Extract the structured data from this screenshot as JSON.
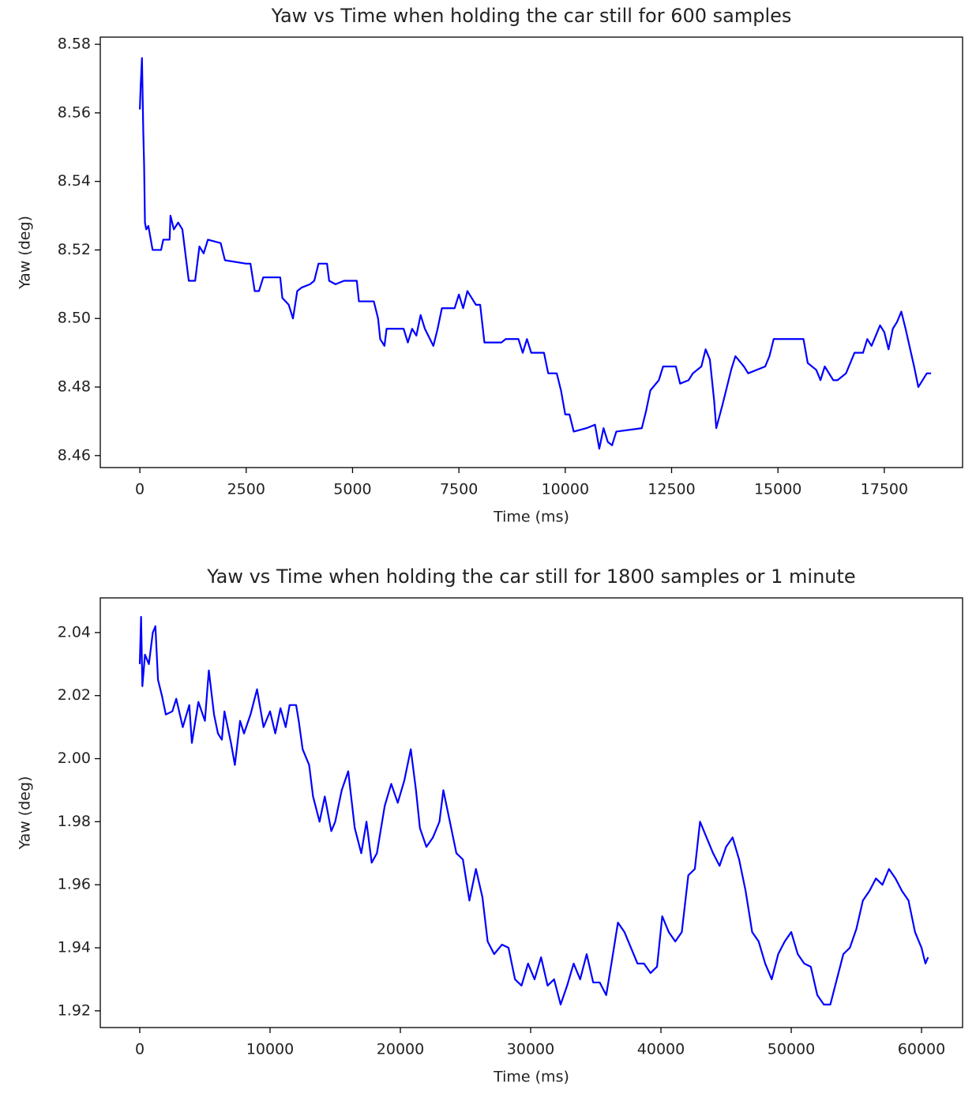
{
  "chart_data": [
    {
      "type": "line",
      "title": "Yaw vs Time when holding the car still for 600 samples",
      "x_label": "Time (ms)",
      "y_label": "Yaw (deg)",
      "x": [
        0,
        20,
        50,
        80,
        100,
        120,
        150,
        200,
        300,
        500,
        550,
        700,
        720,
        800,
        900,
        1000,
        1050,
        1150,
        1300,
        1400,
        1500,
        1600,
        1900,
        2000,
        2500,
        2600,
        2700,
        2800,
        2900,
        3300,
        3350,
        3500,
        3600,
        3700,
        3800,
        4000,
        4100,
        4200,
        4400,
        4450,
        4600,
        4800,
        5100,
        5150,
        5500,
        5600,
        5650,
        5750,
        5800,
        6200,
        6300,
        6400,
        6500,
        6600,
        6700,
        6900,
        7000,
        7100,
        7400,
        7500,
        7600,
        7700,
        7900,
        8000,
        8100,
        8500,
        8600,
        8900,
        9000,
        9100,
        9200,
        9500,
        9600,
        9800,
        9900,
        10000,
        10100,
        10200,
        10500,
        10700,
        10800,
        10900,
        11000,
        11100,
        11200,
        11800,
        11900,
        12000,
        12200,
        12300,
        12600,
        12700,
        12900,
        13000,
        13200,
        13300,
        13400,
        13500,
        13550,
        13700,
        13800,
        13900,
        14000,
        14200,
        14300,
        14700,
        14800,
        14900,
        15300,
        15600,
        15700,
        15900,
        16000,
        16100,
        16300,
        16400,
        16600,
        16800,
        17000,
        17100,
        17200,
        17300,
        17400,
        17500,
        17600,
        17700,
        17800,
        17900,
        18000,
        18200,
        18300,
        18400,
        18500,
        18600
      ],
      "series": [
        {
          "color": "#0000ff",
          "values": [
            8.561,
            8.568,
            8.576,
            8.555,
            8.545,
            8.528,
            8.526,
            8.527,
            8.52,
            8.52,
            8.523,
            8.523,
            8.53,
            8.526,
            8.528,
            8.526,
            8.521,
            8.511,
            8.511,
            8.521,
            8.519,
            8.523,
            8.522,
            8.517,
            8.516,
            8.516,
            8.508,
            8.508,
            8.512,
            8.512,
            8.506,
            8.504,
            8.5,
            8.508,
            8.509,
            8.51,
            8.511,
            8.516,
            8.516,
            8.511,
            8.51,
            8.511,
            8.511,
            8.505,
            8.505,
            8.5,
            8.494,
            8.492,
            8.497,
            8.497,
            8.493,
            8.497,
            8.495,
            8.501,
            8.497,
            8.492,
            8.497,
            8.503,
            8.503,
            8.507,
            8.503,
            8.508,
            8.504,
            8.504,
            8.493,
            8.493,
            8.494,
            8.494,
            8.49,
            8.494,
            8.49,
            8.49,
            8.484,
            8.484,
            8.479,
            8.472,
            8.472,
            8.467,
            8.468,
            8.469,
            8.462,
            8.468,
            8.464,
            8.463,
            8.467,
            8.468,
            8.473,
            8.479,
            8.482,
            8.486,
            8.486,
            8.481,
            8.482,
            8.484,
            8.486,
            8.491,
            8.488,
            8.476,
            8.468,
            8.475,
            8.48,
            8.485,
            8.489,
            8.486,
            8.484,
            8.486,
            8.489,
            8.494,
            8.494,
            8.494,
            8.487,
            8.485,
            8.482,
            8.486,
            8.482,
            8.482,
            8.484,
            8.49,
            8.49,
            8.494,
            8.492,
            8.495,
            8.498,
            8.496,
            8.491,
            8.497,
            8.499,
            8.502,
            8.497,
            8.486,
            8.48,
            8.482,
            8.484,
            8.484
          ]
        }
      ],
      "xlim": [
        -930,
        19340
      ],
      "xticks": [
        0,
        2500,
        5000,
        7500,
        10000,
        12500,
        15000,
        17500
      ],
      "ylim": [
        8.4565,
        8.5821
      ],
      "yticks": [
        8.46,
        8.48,
        {
          "value": 8.5,
          "label": "8.50"
        },
        8.52,
        8.54,
        8.56,
        8.58
      ]
    },
    {
      "type": "line",
      "title": "Yaw vs Time when holding the car still for 1800 samples or 1 minute",
      "x_label": "Time (ms)",
      "y_label": "Yaw (deg)",
      "x": [
        0,
        100,
        200,
        400,
        700,
        1000,
        1200,
        1400,
        1700,
        2000,
        2500,
        2800,
        3300,
        3800,
        4000,
        4500,
        5000,
        5300,
        5700,
        6000,
        6300,
        6500,
        7000,
        7300,
        7700,
        8000,
        8500,
        9000,
        9500,
        10000,
        10400,
        10800,
        11200,
        11500,
        12000,
        12200,
        12500,
        13000,
        13300,
        13800,
        14200,
        14700,
        15000,
        15500,
        16000,
        16500,
        17000,
        17400,
        17800,
        18200,
        18800,
        19300,
        19800,
        20300,
        20800,
        21200,
        21500,
        22000,
        22500,
        23000,
        23300,
        23800,
        24300,
        24800,
        25300,
        25800,
        26300,
        26700,
        27200,
        27800,
        28300,
        28800,
        29300,
        29800,
        30300,
        30800,
        31300,
        31800,
        32300,
        32800,
        33300,
        33800,
        34300,
        34800,
        35300,
        35800,
        36200,
        36700,
        37200,
        37700,
        38200,
        38700,
        39200,
        39700,
        40100,
        40600,
        41100,
        41600,
        42100,
        42600,
        43000,
        43500,
        44000,
        44500,
        45000,
        45500,
        46000,
        46500,
        47000,
        47500,
        48000,
        48500,
        49000,
        49500,
        50000,
        50500,
        51000,
        51500,
        52000,
        52500,
        53000,
        53500,
        54000,
        54500,
        55000,
        55500,
        56000,
        56500,
        57000,
        57500,
        58000,
        58500,
        59000,
        59500,
        60000,
        60300,
        60500
      ],
      "series": [
        {
          "color": "#0000ff",
          "values": [
            2.03,
            2.045,
            2.023,
            2.033,
            2.03,
            2.04,
            2.042,
            2.025,
            2.02,
            2.014,
            2.015,
            2.019,
            2.01,
            2.017,
            2.005,
            2.018,
            2.012,
            2.028,
            2.014,
            2.008,
            2.006,
            2.015,
            2.005,
            1.998,
            2.012,
            2.008,
            2.014,
            2.022,
            2.01,
            2.015,
            2.008,
            2.016,
            2.01,
            2.017,
            2.017,
            2.012,
            2.003,
            1.998,
            1.988,
            1.98,
            1.988,
            1.977,
            1.98,
            1.99,
            1.996,
            1.978,
            1.97,
            1.98,
            1.967,
            1.97,
            1.985,
            1.992,
            1.986,
            1.993,
            2.003,
            1.99,
            1.978,
            1.972,
            1.975,
            1.98,
            1.99,
            1.98,
            1.97,
            1.968,
            1.955,
            1.965,
            1.956,
            1.942,
            1.938,
            1.941,
            1.94,
            1.93,
            1.928,
            1.935,
            1.93,
            1.937,
            1.928,
            1.93,
            1.922,
            1.928,
            1.935,
            1.93,
            1.938,
            1.929,
            1.929,
            1.925,
            1.935,
            1.948,
            1.945,
            1.94,
            1.935,
            1.935,
            1.932,
            1.934,
            1.95,
            1.945,
            1.942,
            1.945,
            1.963,
            1.965,
            1.98,
            1.975,
            1.97,
            1.966,
            1.972,
            1.975,
            1.968,
            1.958,
            1.945,
            1.942,
            1.935,
            1.93,
            1.938,
            1.942,
            1.945,
            1.938,
            1.935,
            1.934,
            1.925,
            1.922,
            1.922,
            1.93,
            1.938,
            1.94,
            1.946,
            1.955,
            1.958,
            1.962,
            1.96,
            1.965,
            1.962,
            1.958,
            1.955,
            1.945,
            1.94,
            1.935,
            1.937
          ]
        }
      ],
      "xlim": [
        -3030,
        63150
      ],
      "xticks": [
        0,
        10000,
        20000,
        30000,
        40000,
        50000,
        60000
      ],
      "ylim": [
        1.9147,
        2.051
      ],
      "yticks": [
        1.92,
        1.94,
        1.96,
        1.98,
        {
          "value": 2,
          "label": "2.00"
        },
        2.02,
        2.04
      ]
    }
  ]
}
